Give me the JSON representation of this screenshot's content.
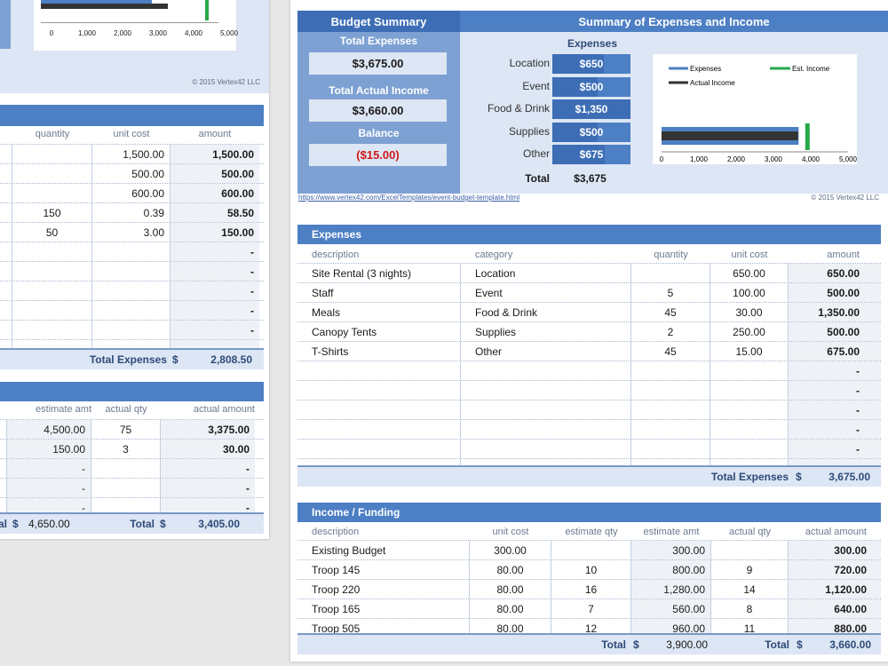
{
  "left": {
    "chart_axis": [
      "0",
      "1,000",
      "2,000",
      "3,000",
      "4,000",
      "5,000"
    ],
    "copyright": "© 2015 Vertex42 LLC",
    "expenses": {
      "headers": [
        "quantity",
        "unit cost",
        "amount"
      ],
      "rows": [
        {
          "quantity": "",
          "unit_cost": "1,500.00",
          "amount": "1,500.00"
        },
        {
          "quantity": "",
          "unit_cost": "500.00",
          "amount": "500.00"
        },
        {
          "quantity": "",
          "unit_cost": "600.00",
          "amount": "600.00"
        },
        {
          "quantity": "150",
          "unit_cost": "0.39",
          "amount": "58.50"
        },
        {
          "quantity": "50",
          "unit_cost": "3.00",
          "amount": "150.00"
        },
        {
          "quantity": "",
          "unit_cost": "",
          "amount": "-"
        },
        {
          "quantity": "",
          "unit_cost": "",
          "amount": "-"
        },
        {
          "quantity": "",
          "unit_cost": "",
          "amount": "-"
        },
        {
          "quantity": "",
          "unit_cost": "",
          "amount": "-"
        },
        {
          "quantity": "",
          "unit_cost": "",
          "amount": "-"
        },
        {
          "quantity": "",
          "unit_cost": "",
          "amount": "-"
        }
      ],
      "total_label": "Total Expenses",
      "total_currency": "$",
      "total_value": "2,808.50"
    },
    "income": {
      "headers": [
        "y",
        "estimate amt",
        "actual qty",
        "actual amount"
      ],
      "rows": [
        {
          "estimate_amt": "4,500.00",
          "actual_qty": "75",
          "actual_amount": "3,375.00"
        },
        {
          "estimate_amt": "150.00",
          "actual_qty": "3",
          "actual_amount": "30.00"
        },
        {
          "estimate_amt": "-",
          "actual_qty": "",
          "actual_amount": "-"
        },
        {
          "estimate_amt": "-",
          "actual_qty": "",
          "actual_amount": "-"
        },
        {
          "estimate_amt": "-",
          "actual_qty": "",
          "actual_amount": "-"
        }
      ],
      "total_left_label": "tal",
      "total_left_currency": "$",
      "total_left_value": "4,650.00",
      "total_label": "Total",
      "total_currency": "$",
      "total_value": "3,405.00"
    }
  },
  "right": {
    "budget_summary": {
      "title": "Budget Summary",
      "total_expenses_label": "Total Expenses",
      "total_expenses_value": "$3,675.00",
      "total_income_label": "Total Actual Income",
      "total_income_value": "$3,660.00",
      "balance_label": "Balance",
      "balance_value": "($15.00)"
    },
    "summary": {
      "title": "Summary of Expenses and Income",
      "expenses_label": "Expenses",
      "items": [
        {
          "label": "Location",
          "value": "$650",
          "amount": 650
        },
        {
          "label": "Event",
          "value": "$500",
          "amount": 500
        },
        {
          "label": "Food & Drink",
          "value": "$1,350",
          "amount": 1350
        },
        {
          "label": "Supplies",
          "value": "$500",
          "amount": 500
        },
        {
          "label": "Other",
          "value": "$675",
          "amount": 675
        }
      ],
      "total_label": "Total",
      "total_value": "$3,675"
    },
    "chart_data": {
      "type": "bar",
      "series": [
        {
          "name": "Expenses",
          "values": [
            3675
          ]
        },
        {
          "name": "Actual Income",
          "values": [
            3660
          ]
        },
        {
          "name": "Est. Income",
          "values": [
            3900
          ]
        }
      ],
      "xlim": [
        0,
        5000
      ],
      "ticks": [
        "0",
        "1,000",
        "2,000",
        "3,000",
        "4,000",
        "5,000"
      ],
      "legend": "top",
      "colors": {
        "expenses": "#4d7fc4",
        "actual": "#333333",
        "est": "#27a84a"
      }
    },
    "link": "https://www.vertex42.com/ExcelTemplates/event-budget-template.html",
    "copyright": "© 2015 Vertex42 LLC",
    "expenses": {
      "title": "Expenses",
      "headers": [
        "description",
        "category",
        "quantity",
        "unit cost",
        "amount"
      ],
      "rows": [
        {
          "description": "Site Rental (3 nights)",
          "category": "Location",
          "quantity": "",
          "unit_cost": "650.00",
          "amount": "650.00"
        },
        {
          "description": "Staff",
          "category": "Event",
          "quantity": "5",
          "unit_cost": "100.00",
          "amount": "500.00"
        },
        {
          "description": "Meals",
          "category": "Food & Drink",
          "quantity": "45",
          "unit_cost": "30.00",
          "amount": "1,350.00"
        },
        {
          "description": "Canopy Tents",
          "category": "Supplies",
          "quantity": "2",
          "unit_cost": "250.00",
          "amount": "500.00"
        },
        {
          "description": "T-Shirts",
          "category": "Other",
          "quantity": "45",
          "unit_cost": "15.00",
          "amount": "675.00"
        },
        {
          "description": "",
          "category": "",
          "quantity": "",
          "unit_cost": "",
          "amount": "-"
        },
        {
          "description": "",
          "category": "",
          "quantity": "",
          "unit_cost": "",
          "amount": "-"
        },
        {
          "description": "",
          "category": "",
          "quantity": "",
          "unit_cost": "",
          "amount": "-"
        },
        {
          "description": "",
          "category": "",
          "quantity": "",
          "unit_cost": "",
          "amount": "-"
        },
        {
          "description": "",
          "category": "",
          "quantity": "",
          "unit_cost": "",
          "amount": "-"
        },
        {
          "description": "",
          "category": "",
          "quantity": "",
          "unit_cost": "",
          "amount": "-"
        }
      ],
      "total_label": "Total Expenses",
      "total_currency": "$",
      "total_value": "3,675.00"
    },
    "income": {
      "title": "Income / Funding",
      "headers": [
        "description",
        "unit cost",
        "estimate qty",
        "estimate amt",
        "actual qty",
        "actual amount"
      ],
      "rows": [
        {
          "description": "Existing Budget",
          "unit_cost": "300.00",
          "estimate_qty": "",
          "estimate_amt": "300.00",
          "actual_qty": "",
          "actual_amount": "300.00"
        },
        {
          "description": "Troop 145",
          "unit_cost": "80.00",
          "estimate_qty": "10",
          "estimate_amt": "800.00",
          "actual_qty": "9",
          "actual_amount": "720.00"
        },
        {
          "description": "Troop 220",
          "unit_cost": "80.00",
          "estimate_qty": "16",
          "estimate_amt": "1,280.00",
          "actual_qty": "14",
          "actual_amount": "1,120.00"
        },
        {
          "description": "Troop 165",
          "unit_cost": "80.00",
          "estimate_qty": "7",
          "estimate_amt": "560.00",
          "actual_qty": "8",
          "actual_amount": "640.00"
        },
        {
          "description": "Troop 505",
          "unit_cost": "80.00",
          "estimate_qty": "12",
          "estimate_amt": "960.00",
          "actual_qty": "11",
          "actual_amount": "880.00"
        }
      ],
      "total_left_label": "Total",
      "total_left_currency": "$",
      "total_left_value": "3,900.00",
      "total_label": "Total",
      "total_currency": "$",
      "total_value": "3,660.00"
    }
  }
}
